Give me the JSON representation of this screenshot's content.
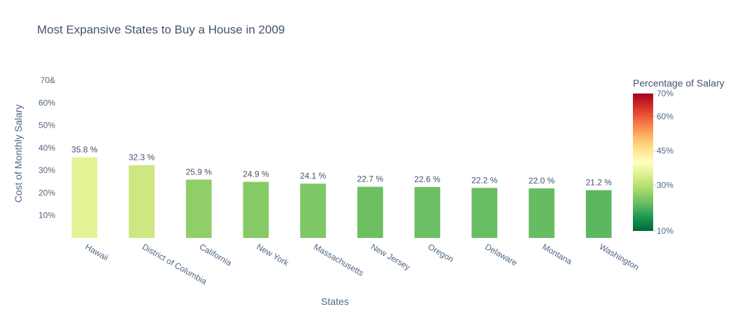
{
  "chart_data": {
    "type": "bar",
    "title": "Most Expansive States to Buy a House in 2009",
    "xlabel": "States",
    "ylabel": "Cost of Monthly Salary",
    "categories": [
      "Hawaii",
      "District of Columbia",
      "California",
      "New York",
      "Massachusetts",
      "New Jersey",
      "Oregon",
      "Delaware",
      "Montana",
      "Washington"
    ],
    "values": [
      35.8,
      32.3,
      25.9,
      24.9,
      24.1,
      22.7,
      22.6,
      22.2,
      22.0,
      21.2
    ],
    "value_labels": [
      "35.8 %",
      "32.3 %",
      "25.9 %",
      "24.9 %",
      "24.1 %",
      "22.7 %",
      "22.6 %",
      "22.2 %",
      "22.0 %",
      "21.2 %"
    ],
    "y_ticks": [
      {
        "value": 10,
        "label": "10%"
      },
      {
        "value": 20,
        "label": "20%"
      },
      {
        "value": 30,
        "label": "30%"
      },
      {
        "value": 40,
        "label": "40%"
      },
      {
        "value": 50,
        "label": "50%"
      },
      {
        "value": 60,
        "label": "60%"
      },
      {
        "value": 70,
        "label": "70&"
      }
    ],
    "ylim": [
      0,
      70
    ],
    "grid": false,
    "colorbar": {
      "title": "Percentage of Salary",
      "range": [
        10,
        70
      ],
      "colorscale": "RdYlGn reversed",
      "ticks": [
        {
          "value": 70,
          "label": "70%"
        },
        {
          "value": 60,
          "label": "60%"
        },
        {
          "value": 45,
          "label": "45%"
        },
        {
          "value": 30,
          "label": "30%"
        },
        {
          "value": 10,
          "label": "10%"
        }
      ],
      "gradient_stops": [
        "#a50026",
        "#d73027",
        "#f46d43",
        "#fdae61",
        "#fee08b",
        "#ffffbf",
        "#d9ef8b",
        "#a6d96a",
        "#66bd63",
        "#1a9850",
        "#006837"
      ]
    },
    "bar_colors": [
      "#e4f295",
      "#cde880",
      "#90ce68",
      "#85ca66",
      "#7ec765",
      "#6dbf62",
      "#6cbf62",
      "#68bd61",
      "#66bc61",
      "#5cb75f"
    ]
  }
}
